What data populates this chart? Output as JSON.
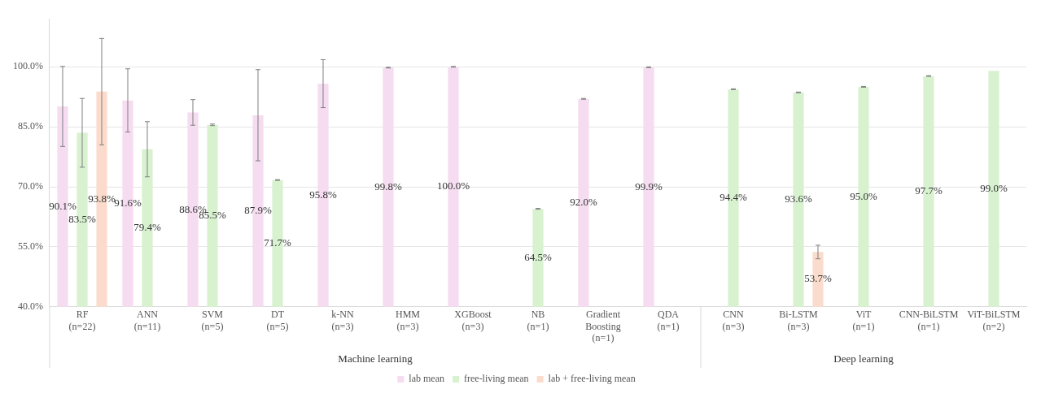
{
  "chart_data": {
    "type": "bar",
    "categories": [
      "RF\n(n=22)",
      "ANN\n(n=11)",
      "SVM\n(n=5)",
      "DT\n(n=5)",
      "k-NN\n(n=3)",
      "HMM\n(n=3)",
      "XGBoost\n(n=3)",
      "NB\n(n=1)",
      "Gradient\nBoosting\n(n=1)",
      "QDA\n(n=1)",
      "CNN\n(n=3)",
      "Bi-LSTM\n(n=3)",
      "ViT\n(n=1)",
      "CNN-BiLSTM\n(n=1)",
      "ViT-BiLSTM\n(n=2)"
    ],
    "series": [
      {
        "name": "lab mean",
        "color": "#f5dcf0",
        "values": [
          90.1,
          91.6,
          88.6,
          87.9,
          95.8,
          99.8,
          100.0,
          null,
          92.0,
          99.9,
          null,
          null,
          null,
          null,
          null
        ],
        "errors": [
          10.0,
          7.9,
          3.2,
          11.4,
          6.0,
          0.1,
          0.1,
          null,
          0.1,
          0.1,
          null,
          null,
          null,
          null,
          null
        ],
        "value_labels": [
          "90.1%",
          "91.6%",
          "88.6%",
          "87.9%",
          "95.8%",
          "99.8%",
          "100.0%",
          null,
          "92.0%",
          "99.9%",
          null,
          null,
          null,
          null,
          null
        ]
      },
      {
        "name": "free-living mean",
        "color": "#d8f2d0",
        "values": [
          83.5,
          79.4,
          85.5,
          71.7,
          null,
          null,
          null,
          64.5,
          null,
          null,
          94.4,
          93.6,
          95.0,
          97.7,
          99.0
        ],
        "errors": [
          8.6,
          6.9,
          0.2,
          0.1,
          null,
          null,
          null,
          0.1,
          null,
          null,
          0.1,
          0.1,
          0.1,
          0.1,
          null
        ],
        "value_labels": [
          "83.5%",
          "79.4%",
          "85.5%",
          "71.7%",
          null,
          null,
          null,
          "64.5%",
          null,
          null,
          "94.4%",
          "93.6%",
          "95.0%",
          "97.7%",
          "99.0%"
        ]
      },
      {
        "name": "lab + free-living mean",
        "color": "#fbdccc",
        "values": [
          93.8,
          null,
          null,
          null,
          null,
          null,
          null,
          null,
          null,
          null,
          null,
          53.7,
          null,
          null,
          null
        ],
        "errors": [
          13.3,
          null,
          null,
          null,
          null,
          null,
          null,
          null,
          null,
          null,
          null,
          1.7,
          null,
          null,
          null
        ],
        "value_labels": [
          "93.8%",
          null,
          null,
          null,
          null,
          null,
          null,
          null,
          null,
          null,
          null,
          "53.7%",
          null,
          null,
          null
        ]
      }
    ],
    "ylim": [
      40,
      112
    ],
    "yticks": [
      {
        "value": 40,
        "label": "40.0%"
      },
      {
        "value": 55,
        "label": "55.0%"
      },
      {
        "value": 70,
        "label": "70.0%"
      },
      {
        "value": 85,
        "label": "85.0%"
      },
      {
        "value": 100,
        "label": "100.0%"
      }
    ],
    "grid": "y",
    "legend": "bottom",
    "annotations": [
      "Machine learning",
      "Deep learning"
    ]
  }
}
